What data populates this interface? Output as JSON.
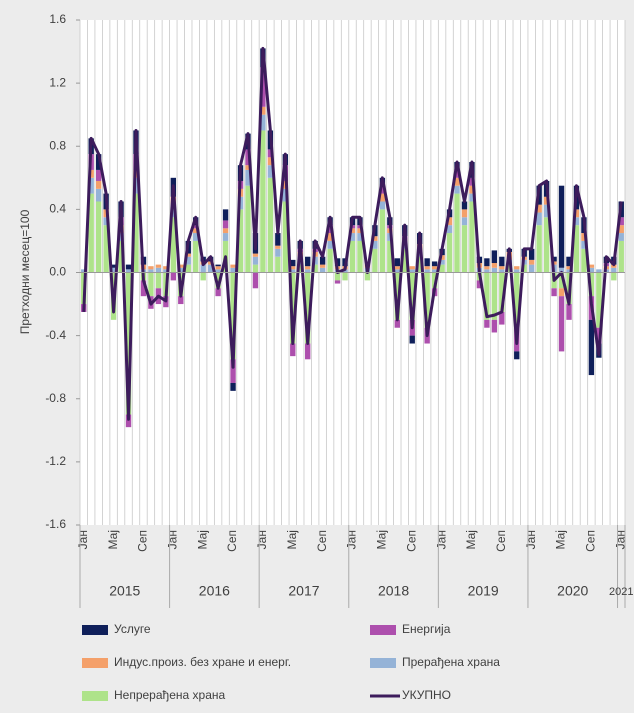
{
  "chart_data": {
    "type": "bar",
    "stacked": true,
    "y_label": "Претходни месец=100",
    "categories": [
      "Јан",
      null,
      null,
      null,
      "Мај",
      null,
      null,
      null,
      "Сеп",
      null,
      null,
      null,
      "Јан",
      null,
      null,
      null,
      "Мај",
      null,
      null,
      null,
      "Сеп",
      null,
      null,
      null,
      "Јан",
      null,
      null,
      null,
      "Мај",
      null,
      null,
      null,
      "Сеп",
      null,
      null,
      null,
      "Јан",
      null,
      null,
      null,
      "Мај",
      null,
      null,
      null,
      "Сеп",
      null,
      null,
      null,
      "Јан",
      null,
      null,
      null,
      "Мај",
      null,
      null,
      null,
      "Сеп",
      null,
      null,
      null,
      "Јан",
      null,
      null,
      null,
      "Мај",
      null,
      null,
      null,
      "Сеп",
      null,
      null,
      null,
      "Јан"
    ],
    "years": [
      "2015",
      "2016",
      "2017",
      "2018",
      "2019",
      "2020",
      "2021"
    ],
    "ylim": [
      -1.6,
      1.6
    ],
    "yticks": [
      -1.6,
      -1.2,
      -0.8,
      -0.4,
      {
        "value": 0,
        "label": "0.0"
      },
      0.4,
      0.8,
      1.2,
      1.6
    ],
    "series": [
      {
        "name": "Услуге",
        "color": "#0f1f5a",
        "values": [
          0.0,
          0.1,
          0.1,
          0.1,
          0.02,
          0.1,
          0.03,
          0.15,
          0.05,
          0.0,
          0.0,
          0.0,
          0.12,
          0.0,
          0.08,
          0.05,
          0.03,
          0.03,
          0.01,
          0.07,
          -0.05,
          0.1,
          0.1,
          0.13,
          0.12,
          0.12,
          0.08,
          0.07,
          0.04,
          0.05,
          0.06,
          0.05,
          0.05,
          0.05,
          0.05,
          0.05,
          0.05,
          0.05,
          0.0,
          0.07,
          0.05,
          0.05,
          0.05,
          0.07,
          -0.05,
          0.07,
          0.05,
          0.03,
          0.04,
          0.05,
          0.05,
          0.05,
          0.1,
          0.04,
          0.05,
          0.08,
          0.06,
          0.02,
          -0.05,
          0.05,
          0.07,
          0.12,
          0.1,
          0.03,
          0.52,
          0.06,
          0.15,
          0.1,
          -0.35,
          -0.09,
          0.04,
          0.05,
          0.1
        ]
      },
      {
        "name": "Енергија",
        "color": "#ad4fad",
        "values": [
          -0.05,
          0.1,
          0.07,
          0.0,
          0.0,
          0.05,
          -0.08,
          0.1,
          -0.1,
          -0.08,
          -0.1,
          -0.07,
          -0.05,
          -0.05,
          0.0,
          0.02,
          0.0,
          0.0,
          -0.05,
          0.05,
          -0.15,
          0.05,
          0.1,
          -0.1,
          0.25,
          0.05,
          0.0,
          0.1,
          -0.08,
          0.02,
          -0.1,
          0.02,
          0.0,
          0.05,
          -0.02,
          0.0,
          0.02,
          0.02,
          0.0,
          0.0,
          0.05,
          0.02,
          -0.05,
          0.02,
          -0.1,
          0.0,
          -0.1,
          -0.05,
          0.0,
          0.0,
          0.05,
          0.0,
          0.05,
          -0.05,
          -0.05,
          -0.08,
          -0.08,
          0.0,
          -0.15,
          0.0,
          0.0,
          0.0,
          0.0,
          -0.05,
          -0.35,
          -0.1,
          0.0,
          0.0,
          -0.15,
          -0.1,
          0.02,
          0.0,
          0.05
        ]
      },
      {
        "name": "Индус.произ. без хране и енерг.",
        "color": "#f4a06a",
        "values": [
          0.0,
          0.05,
          0.05,
          0.05,
          0.0,
          0.05,
          0.0,
          0.05,
          0.03,
          0.02,
          0.02,
          0.02,
          0.05,
          0.02,
          0.02,
          0.03,
          0.02,
          0.02,
          0.02,
          0.03,
          0.02,
          0.05,
          0.03,
          0.02,
          0.05,
          0.05,
          0.02,
          0.05,
          0.02,
          0.03,
          0.02,
          0.03,
          0.02,
          0.05,
          0.02,
          0.02,
          0.03,
          0.03,
          0.02,
          0.03,
          0.05,
          0.03,
          0.02,
          0.03,
          0.02,
          0.05,
          0.02,
          0.02,
          0.03,
          0.05,
          0.05,
          0.05,
          0.05,
          0.03,
          0.02,
          0.03,
          0.02,
          0.05,
          0.02,
          0.02,
          0.03,
          0.05,
          0.05,
          0.02,
          -0.05,
          0.02,
          0.05,
          0.05,
          0.02,
          0.0,
          0.02,
          0.02,
          0.05
        ]
      },
      {
        "name": "Прерађена храна",
        "color": "#95b3d7",
        "values": [
          0.02,
          0.1,
          0.08,
          0.05,
          0.03,
          0.05,
          0.02,
          0.1,
          0.02,
          0.02,
          0.03,
          0.02,
          0.08,
          0.03,
          0.05,
          0.05,
          0.05,
          0.05,
          0.02,
          0.05,
          0.03,
          0.08,
          0.1,
          0.05,
          0.1,
          0.08,
          0.05,
          0.08,
          0.02,
          0.05,
          0.02,
          0.05,
          0.03,
          0.05,
          0.02,
          0.02,
          0.05,
          0.05,
          0.03,
          0.05,
          0.05,
          0.05,
          0.02,
          0.03,
          0.02,
          0.03,
          0.02,
          0.02,
          0.03,
          0.05,
          0.05,
          0.05,
          0.05,
          0.03,
          0.02,
          0.03,
          0.02,
          0.03,
          0.02,
          0.03,
          0.05,
          0.08,
          0.08,
          0.05,
          0.03,
          0.02,
          0.05,
          0.05,
          0.03,
          0.02,
          0.02,
          0.03,
          0.05
        ]
      },
      {
        "name": "Непрерађена храна",
        "color": "#aee38a",
        "values": [
          -0.2,
          0.5,
          0.45,
          0.3,
          -0.3,
          0.2,
          -0.9,
          0.5,
          -0.05,
          -0.15,
          -0.1,
          -0.15,
          0.35,
          -0.15,
          0.05,
          0.2,
          -0.05,
          0.0,
          -0.1,
          0.2,
          -0.55,
          0.4,
          0.55,
          0.05,
          0.9,
          0.6,
          0.1,
          0.45,
          -0.45,
          0.05,
          -0.45,
          0.05,
          0.0,
          0.15,
          -0.05,
          -0.05,
          0.2,
          0.2,
          -0.05,
          0.15,
          0.4,
          0.2,
          -0.3,
          0.15,
          -0.3,
          0.1,
          -0.35,
          -0.1,
          0.05,
          0.25,
          0.5,
          0.3,
          0.45,
          -0.05,
          -0.3,
          -0.3,
          -0.25,
          0.05,
          -0.35,
          0.05,
          0.0,
          0.3,
          0.35,
          -0.1,
          -0.1,
          -0.2,
          0.3,
          0.15,
          -0.15,
          -0.35,
          0.0,
          -0.05,
          0.2
        ]
      }
    ],
    "line": {
      "type": "line",
      "name": "УКУПНО",
      "color": "#3d1c5c",
      "values": [
        -0.25,
        0.85,
        0.75,
        0.5,
        -0.25,
        0.45,
        -0.93,
        0.9,
        -0.05,
        -0.2,
        -0.15,
        -0.18,
        0.55,
        -0.15,
        0.2,
        0.35,
        0.05,
        0.1,
        -0.1,
        0.1,
        -0.6,
        0.68,
        0.88,
        0.15,
        1.42,
        0.9,
        0.25,
        0.75,
        -0.45,
        0.2,
        -0.45,
        0.2,
        0.1,
        0.35,
        0.0,
        0.02,
        0.35,
        0.35,
        0.0,
        0.3,
        0.6,
        0.35,
        -0.3,
        0.3,
        -0.35,
        0.25,
        -0.4,
        -0.1,
        0.15,
        0.4,
        0.7,
        0.45,
        0.7,
        0.0,
        -0.28,
        -0.27,
        -0.25,
        0.15,
        -0.45,
        0.15,
        0.15,
        0.55,
        0.58,
        -0.05,
        0.0,
        -0.2,
        0.55,
        0.35,
        -0.2,
        -0.52,
        0.1,
        0.05,
        0.45
      ]
    }
  }
}
